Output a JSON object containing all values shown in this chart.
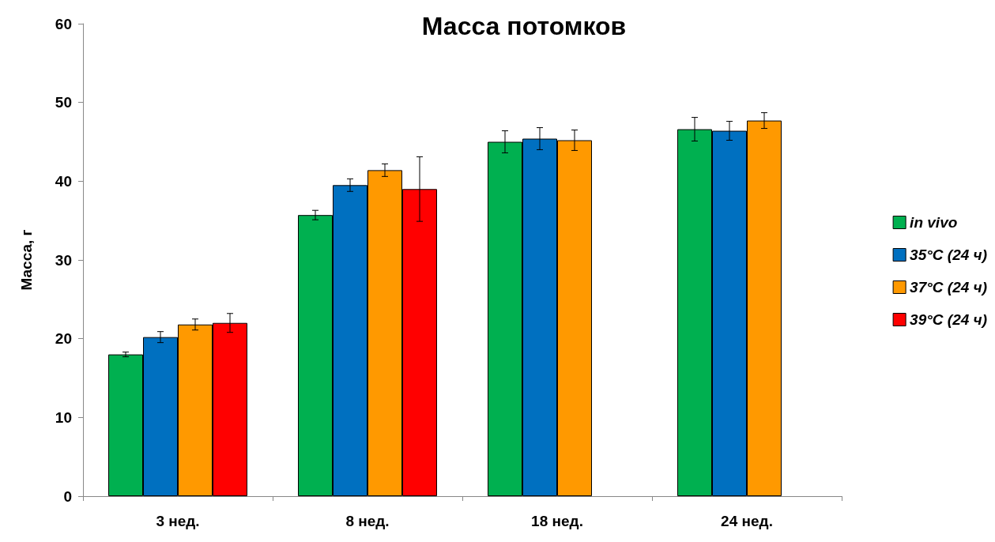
{
  "chart_data": {
    "type": "bar",
    "title": "Масса потомков",
    "ylabel": "Масса, г",
    "categories": [
      "3 нед.",
      "8 нед.",
      "18 нед.",
      "24 нед."
    ],
    "series": [
      {
        "name": "in vivo",
        "color": "#00b050",
        "values": [
          18.0,
          35.7,
          45.0,
          46.6
        ],
        "errors": [
          0.3,
          0.6,
          1.4,
          1.5
        ]
      },
      {
        "name": "35°C (24 ч)",
        "color": "#0070c0",
        "values": [
          20.2,
          39.5,
          45.4,
          46.4
        ],
        "errors": [
          0.7,
          0.8,
          1.4,
          1.2
        ]
      },
      {
        "name": "37°C (24 ч)",
        "color": "#ff9900",
        "values": [
          21.8,
          41.4,
          45.2,
          47.7
        ],
        "errors": [
          0.7,
          0.8,
          1.3,
          1.0
        ]
      },
      {
        "name": "39°C (24 ч)",
        "color": "#ff0000",
        "values": [
          22.0,
          39.0,
          null,
          null
        ],
        "errors": [
          1.2,
          4.1,
          null,
          null
        ]
      }
    ],
    "ylim": [
      0,
      60
    ],
    "yticks": [
      0,
      10,
      20,
      30,
      40,
      50,
      60
    ],
    "grid": false,
    "legend": "right"
  }
}
